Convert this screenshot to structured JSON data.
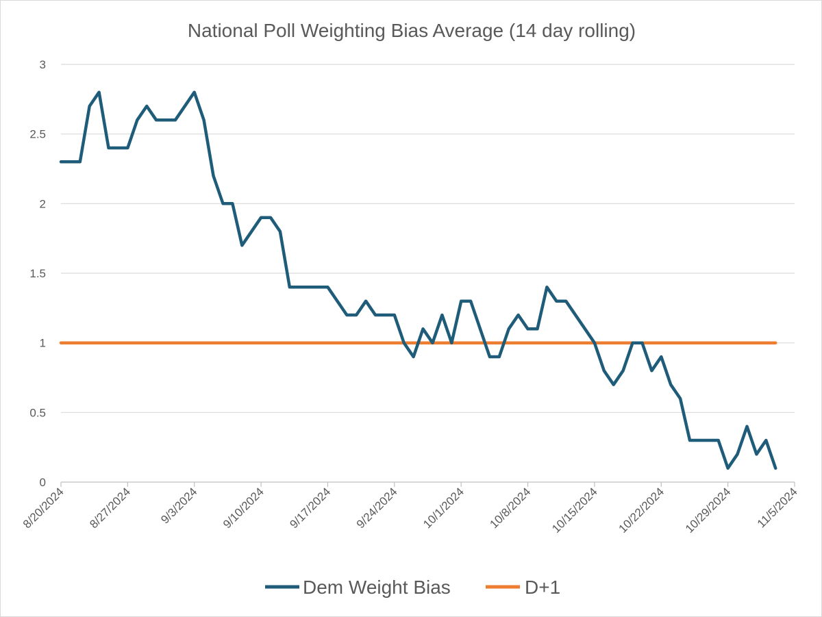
{
  "chart_data": {
    "type": "line",
    "title": "National Poll Weighting Bias Average (14 day rolling)",
    "xlabel": "",
    "ylabel": "",
    "ylim": [
      0,
      3
    ],
    "yticks": [
      0,
      0.5,
      1,
      1.5,
      2,
      2.5,
      3
    ],
    "ytick_labels": [
      "0",
      "0.5",
      "1",
      "1.5",
      "2",
      "2.5",
      "3"
    ],
    "xlim": [
      "2024-08-20",
      "2024-11-05"
    ],
    "xtick_labels": [
      "8/20/2024",
      "8/27/2024",
      "9/3/2024",
      "9/10/2024",
      "9/17/2024",
      "9/24/2024",
      "10/1/2024",
      "10/8/2024",
      "10/15/2024",
      "10/22/2024",
      "10/29/2024",
      "11/5/2024"
    ],
    "xtick_dates": [
      "2024-08-20",
      "2024-08-27",
      "2024-09-03",
      "2024-09-10",
      "2024-09-17",
      "2024-09-24",
      "2024-10-01",
      "2024-10-08",
      "2024-10-15",
      "2024-10-22",
      "2024-10-29",
      "2024-11-05"
    ],
    "grid": true,
    "legend_position": "bottom",
    "series": [
      {
        "name": "Dem Weight Bias",
        "color": "#1f5c7a",
        "x": [
          "2024-08-20",
          "2024-08-22",
          "2024-08-23",
          "2024-08-24",
          "2024-08-25",
          "2024-08-27",
          "2024-08-28",
          "2024-08-29",
          "2024-08-30",
          "2024-09-01",
          "2024-09-03",
          "2024-09-04",
          "2024-09-05",
          "2024-09-06",
          "2024-09-07",
          "2024-09-08",
          "2024-09-10",
          "2024-09-11",
          "2024-09-12",
          "2024-09-13",
          "2024-09-17",
          "2024-09-19",
          "2024-09-20",
          "2024-09-21",
          "2024-09-22",
          "2024-09-24",
          "2024-09-25",
          "2024-09-26",
          "2024-09-27",
          "2024-09-28",
          "2024-09-29",
          "2024-09-30",
          "2024-10-01",
          "2024-10-02",
          "2024-10-04",
          "2024-10-05",
          "2024-10-06",
          "2024-10-07",
          "2024-10-08",
          "2024-10-09",
          "2024-10-10",
          "2024-10-11",
          "2024-10-12",
          "2024-10-14",
          "2024-10-15",
          "2024-10-16",
          "2024-10-17",
          "2024-10-18",
          "2024-10-19",
          "2024-10-20",
          "2024-10-21",
          "2024-10-22",
          "2024-10-23",
          "2024-10-24",
          "2024-10-25",
          "2024-10-26",
          "2024-10-28",
          "2024-10-29",
          "2024-10-30",
          "2024-10-31",
          "2024-11-01",
          "2024-11-02",
          "2024-11-03"
        ],
        "values": [
          2.3,
          2.3,
          2.7,
          2.8,
          2.4,
          2.4,
          2.6,
          2.7,
          2.6,
          2.6,
          2.8,
          2.6,
          2.2,
          2.0,
          2.0,
          1.7,
          1.9,
          1.9,
          1.8,
          1.4,
          1.4,
          1.2,
          1.2,
          1.3,
          1.2,
          1.2,
          1.0,
          0.9,
          1.1,
          1.0,
          1.2,
          1.0,
          1.3,
          1.3,
          0.9,
          0.9,
          1.1,
          1.2,
          1.1,
          1.1,
          1.4,
          1.3,
          1.3,
          1.1,
          1.0,
          0.8,
          0.7,
          0.8,
          1.0,
          1.0,
          0.8,
          0.9,
          0.7,
          0.6,
          0.3,
          0.3,
          0.3,
          0.1,
          0.2,
          0.4,
          0.2,
          0.3,
          0.1
        ]
      },
      {
        "name": "D+1",
        "color": "#ed7d31",
        "x": [
          "2024-08-20",
          "2024-11-03"
        ],
        "values": [
          1,
          1
        ]
      }
    ]
  }
}
